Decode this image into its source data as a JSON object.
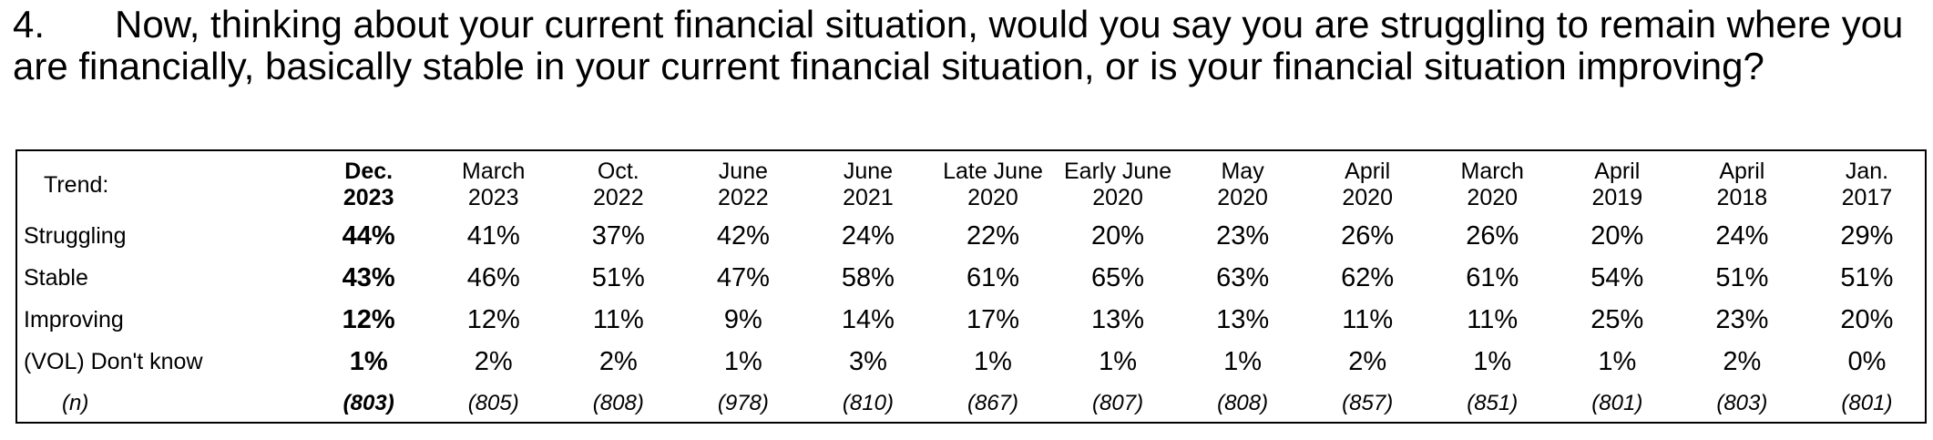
{
  "question": {
    "number": "4.",
    "text": "Now, thinking about your current financial situation, would you say you are struggling to remain where you are financially, basically stable in your current financial situation, or is your financial situation improving?"
  },
  "table": {
    "trend_label": "Trend:",
    "columns": [
      {
        "line1": "Dec.",
        "line2": "2023",
        "current": true
      },
      {
        "line1": "March",
        "line2": "2023"
      },
      {
        "line1": "Oct.",
        "line2": "2022"
      },
      {
        "line1": "June",
        "line2": "2022"
      },
      {
        "line1": "June",
        "line2": "2021"
      },
      {
        "line1": "Late June",
        "line2": "2020"
      },
      {
        "line1": "Early June",
        "line2": "2020"
      },
      {
        "line1": "May",
        "line2": "2020"
      },
      {
        "line1": "April",
        "line2": "2020"
      },
      {
        "line1": "March",
        "line2": "2020"
      },
      {
        "line1": "April",
        "line2": "2019"
      },
      {
        "line1": "April",
        "line2": "2018"
      },
      {
        "line1": "Jan.",
        "line2": "2017"
      }
    ],
    "rows": [
      {
        "label": "Struggling",
        "values": [
          "44%",
          "41%",
          "37%",
          "42%",
          "24%",
          "22%",
          "20%",
          "23%",
          "26%",
          "26%",
          "20%",
          "24%",
          "29%"
        ]
      },
      {
        "label": "Stable",
        "values": [
          "43%",
          "46%",
          "51%",
          "47%",
          "58%",
          "61%",
          "65%",
          "63%",
          "62%",
          "61%",
          "54%",
          "51%",
          "51%"
        ]
      },
      {
        "label": "Improving",
        "values": [
          "12%",
          "12%",
          "11%",
          "9%",
          "14%",
          "17%",
          "13%",
          "13%",
          "11%",
          "11%",
          "25%",
          "23%",
          "20%"
        ]
      },
      {
        "label": "(VOL) Don't know",
        "values": [
          "1%",
          "2%",
          "2%",
          "1%",
          "3%",
          "1%",
          "1%",
          "1%",
          "2%",
          "1%",
          "1%",
          "2%",
          "0%"
        ]
      }
    ],
    "n_row": {
      "label": "(n)",
      "values": [
        "(803)",
        "(805)",
        "(808)",
        "(978)",
        "(810)",
        "(867)",
        "(807)",
        "(808)",
        "(857)",
        "(851)",
        "(801)",
        "(803)",
        "(801)"
      ]
    }
  }
}
